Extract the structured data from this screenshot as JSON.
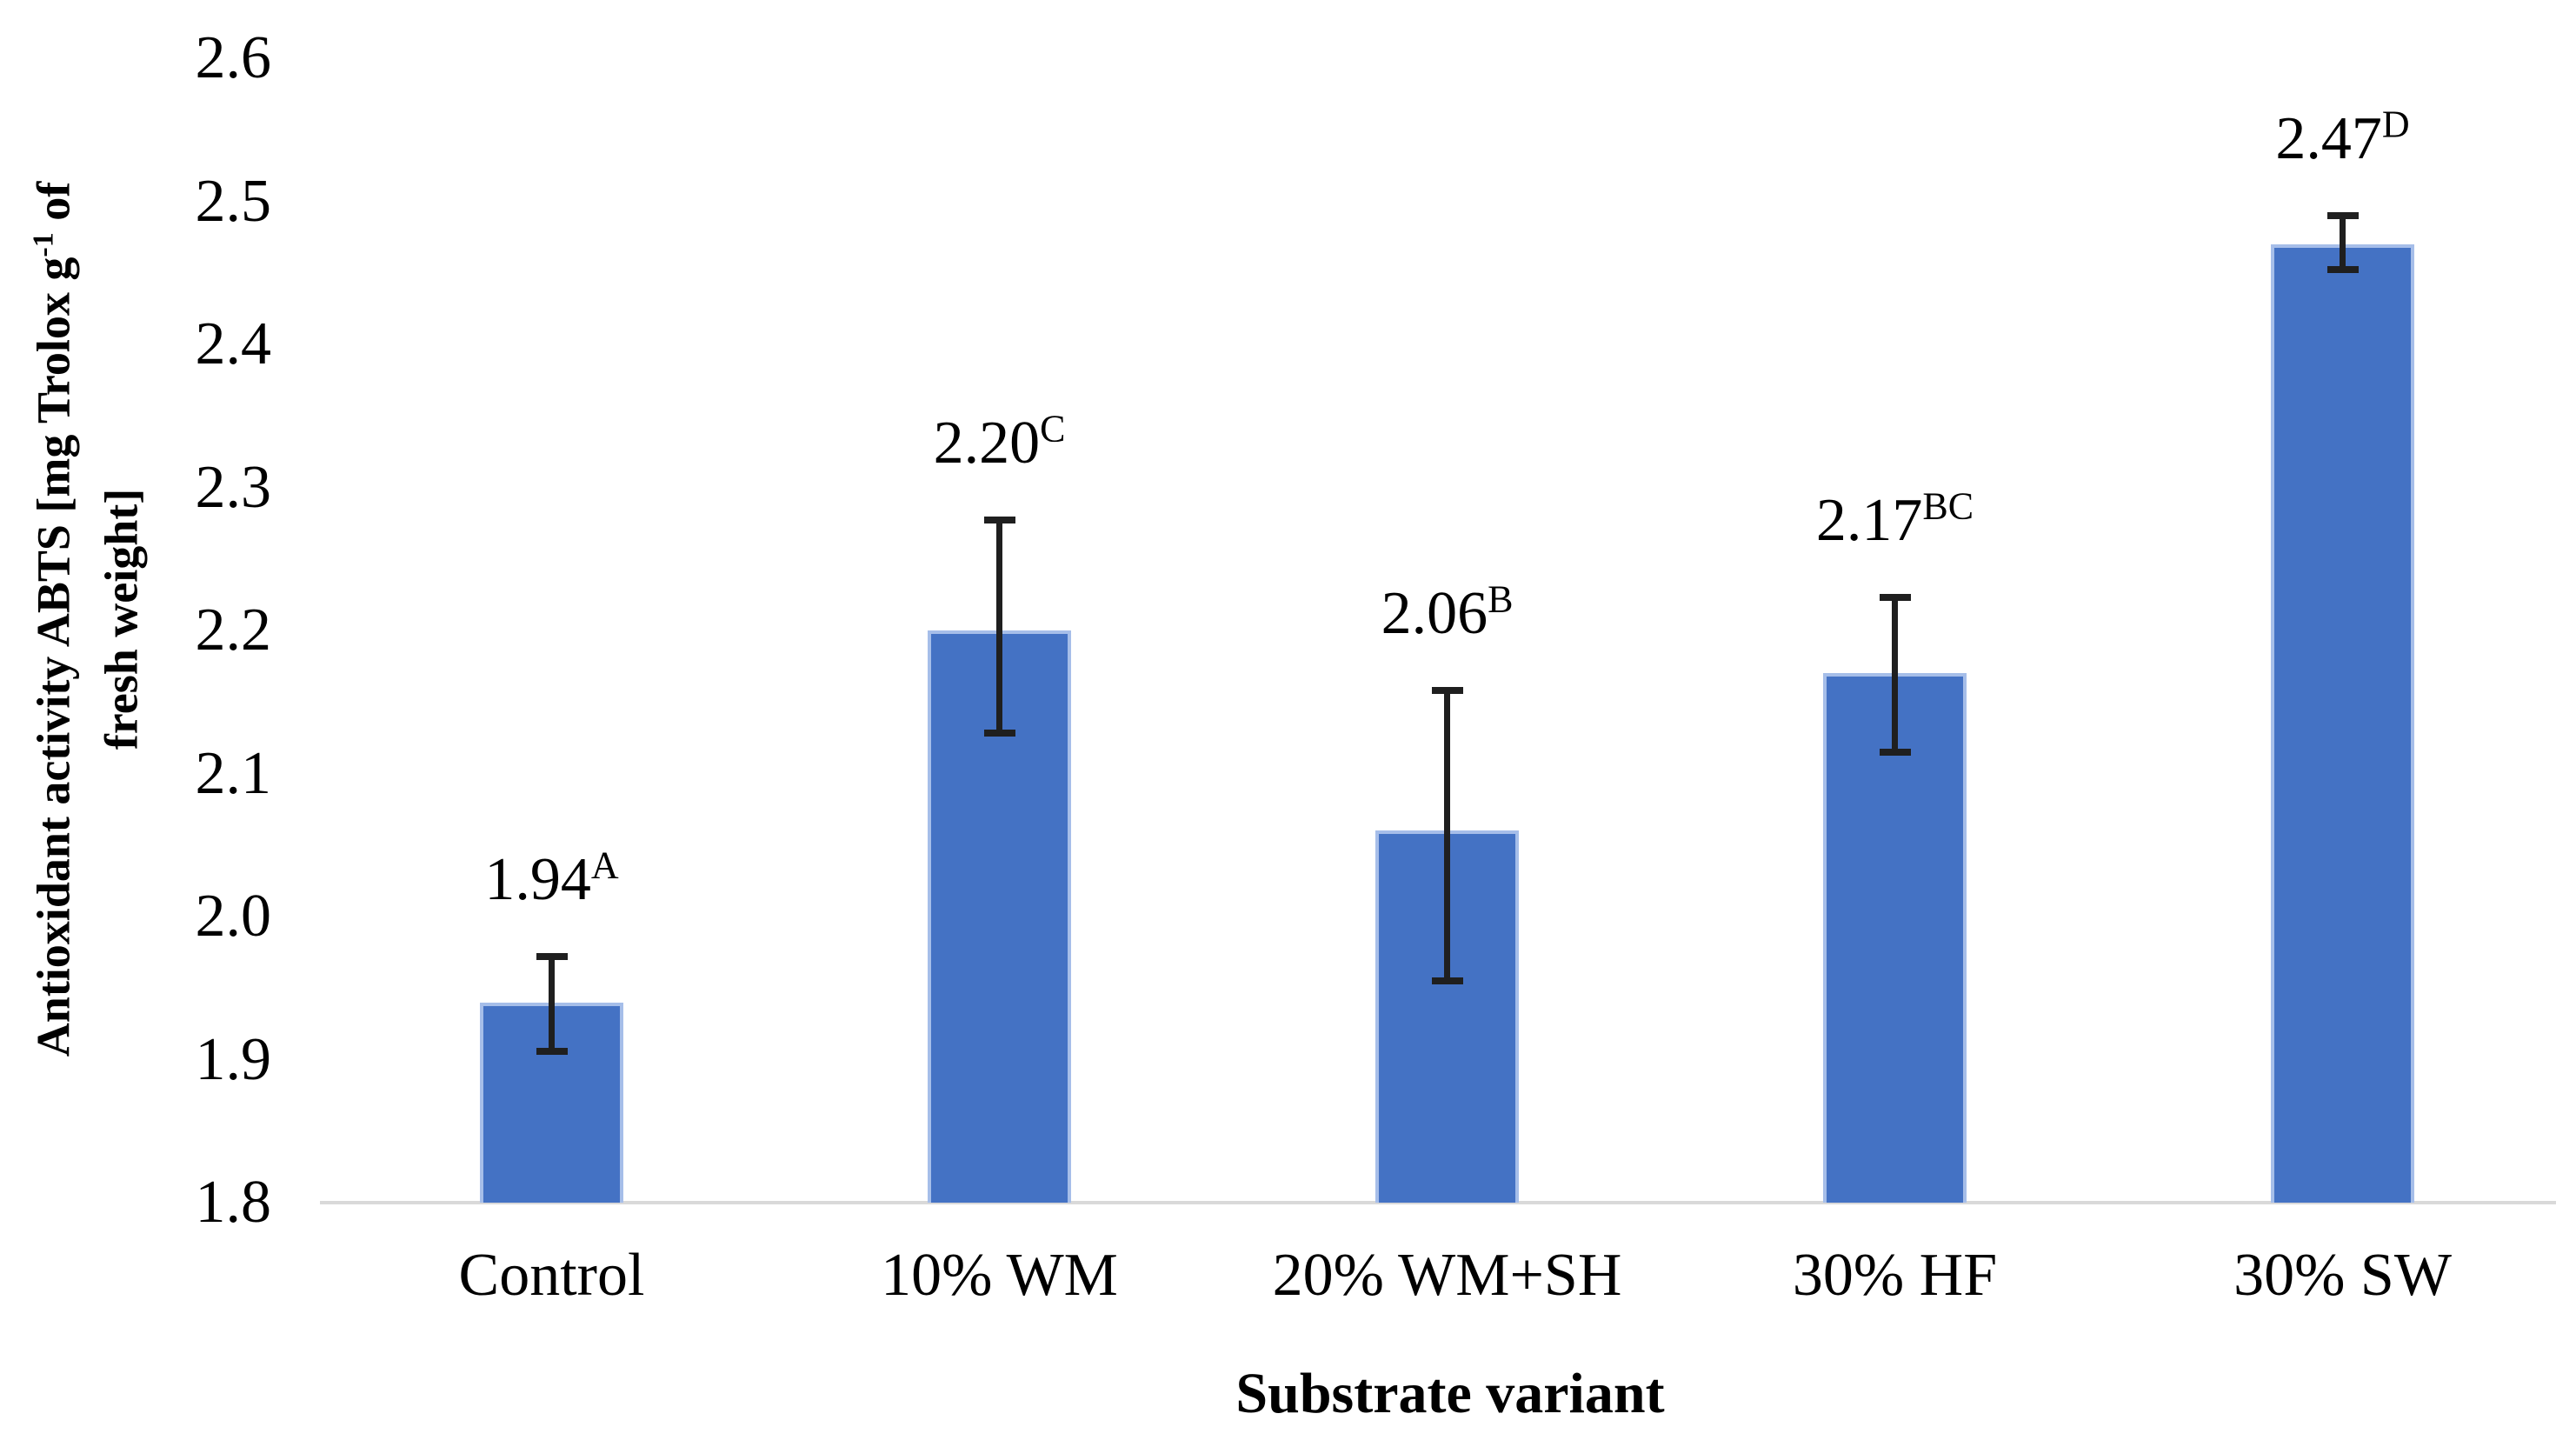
{
  "chart_data": {
    "type": "bar",
    "title": "",
    "categories": [
      "Control",
      "10% WM",
      "20% WM+SH",
      "30% HF",
      "30% SW"
    ],
    "series": [
      {
        "name": "Antioxidant activity ABTS",
        "values": [
          1.94,
          2.2,
          2.06,
          2.17,
          2.47
        ],
        "error_plus": [
          0.032,
          0.077,
          0.098,
          0.053,
          0.02
        ],
        "error_minus": [
          0.034,
          0.072,
          0.105,
          0.055,
          0.018
        ]
      }
    ],
    "data_labels": [
      {
        "value": "1.94",
        "sup": "A"
      },
      {
        "value": "2.20",
        "sup": "C"
      },
      {
        "value": "2.06",
        "sup": "B"
      },
      {
        "value": "2.17",
        "sup": "BC"
      },
      {
        "value": "2.47",
        "sup": "D"
      }
    ],
    "xlabel": "Substrate variant",
    "ylabel": {
      "line1_pre": "Antioxidant activity ABTS [mg Trolox g",
      "line1_sup": "-1",
      "line1_post": " of",
      "line2": "fresh weight]"
    },
    "ylim": [
      1.8,
      2.6
    ],
    "ytick_labels": [
      "1.8",
      "1.9",
      "2.0",
      "2.1",
      "2.2",
      "2.3",
      "2.4",
      "2.5",
      "2.6"
    ],
    "grid": false,
    "legend": false,
    "layout": {
      "legend_position": "none",
      "bars_per_group": 1
    },
    "colors": {
      "bar_fill": "#4472C4",
      "bar_border": "#A6BEE9",
      "axis_line": "#D9D9D9",
      "error_bar": "#1F1F1F",
      "text": "#000000"
    }
  }
}
